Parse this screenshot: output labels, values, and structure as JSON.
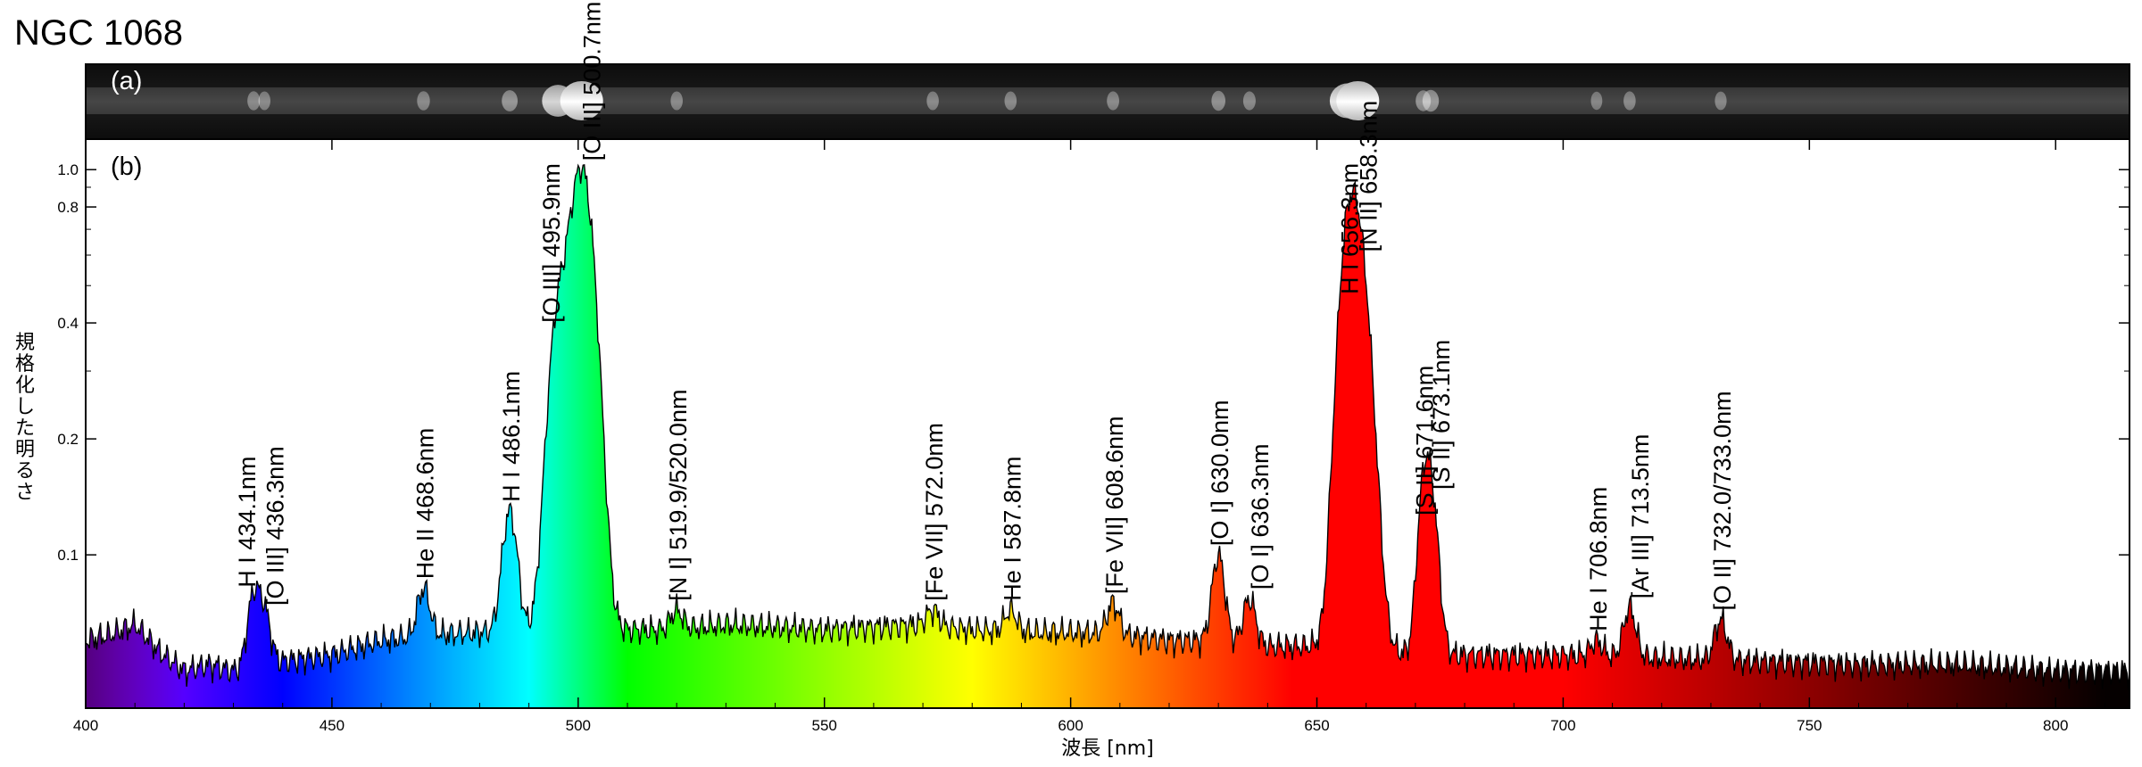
{
  "chart_data": {
    "type": "area",
    "title": "NGC 1068",
    "panel_a_label": "(a)",
    "panel_b_label": "(b)",
    "xlabel": "波長 [nm]",
    "ylabel": "規格化した明るさ",
    "xscale": "linear",
    "yscale": "log",
    "xlim": [
      400,
      815
    ],
    "ylim": [
      0.04,
      1.2
    ],
    "x_ticks": [
      400,
      450,
      500,
      550,
      600,
      650,
      700,
      750,
      800
    ],
    "x_tick_labels": [
      "400",
      "450",
      "500",
      "550",
      "600",
      "650",
      "700",
      "750",
      "800"
    ],
    "y_ticks": [
      0.1,
      0.2,
      0.4,
      0.8,
      1.0
    ],
    "y_tick_labels": [
      "0.1",
      "0.2",
      "0.4",
      "0.8",
      "1.0"
    ],
    "continuum_anchors": [
      [
        400,
        0.06
      ],
      [
        405,
        0.062
      ],
      [
        410,
        0.066
      ],
      [
        415,
        0.056
      ],
      [
        420,
        0.05
      ],
      [
        425,
        0.052
      ],
      [
        430,
        0.05
      ],
      [
        440,
        0.053
      ],
      [
        450,
        0.055
      ],
      [
        460,
        0.06
      ],
      [
        470,
        0.062
      ],
      [
        480,
        0.063
      ],
      [
        490,
        0.064
      ],
      [
        510,
        0.064
      ],
      [
        520,
        0.064
      ],
      [
        530,
        0.066
      ],
      [
        540,
        0.065
      ],
      [
        550,
        0.064
      ],
      [
        560,
        0.065
      ],
      [
        570,
        0.066
      ],
      [
        580,
        0.064
      ],
      [
        590,
        0.063
      ],
      [
        600,
        0.063
      ],
      [
        610,
        0.062
      ],
      [
        620,
        0.06
      ],
      [
        630,
        0.06
      ],
      [
        640,
        0.058
      ],
      [
        650,
        0.058
      ],
      [
        660,
        0.056
      ],
      [
        680,
        0.055
      ],
      [
        690,
        0.055
      ],
      [
        700,
        0.055
      ],
      [
        720,
        0.054
      ],
      [
        740,
        0.053
      ],
      [
        760,
        0.052
      ],
      [
        780,
        0.052
      ],
      [
        800,
        0.05
      ],
      [
        815,
        0.05
      ]
    ],
    "emission_lines": [
      {
        "label": "H I 434.1nm",
        "wavelength": 434.1,
        "peak": 0.078
      },
      {
        "label": "[O III] 436.3nm",
        "wavelength": 436.3,
        "peak": 0.07
      },
      {
        "label": "He II 468.6nm",
        "wavelength": 468.6,
        "peak": 0.082
      },
      {
        "label": "H I 486.1nm",
        "wavelength": 486.1,
        "peak": 0.13
      },
      {
        "label": "[O III] 495.9nm",
        "wavelength": 495.9,
        "peak": 0.38
      },
      {
        "label": "[O III] 500.7nm",
        "wavelength": 500.7,
        "peak": 1.0
      },
      {
        "label": "[N I] 519.9/520.0nm",
        "wavelength": 520.0,
        "peak": 0.072
      },
      {
        "label": "[Fe VII] 572.0nm",
        "wavelength": 572.0,
        "peak": 0.072
      },
      {
        "label": "He I 587.8nm",
        "wavelength": 587.8,
        "peak": 0.072
      },
      {
        "label": "[Fe VII] 608.6nm",
        "wavelength": 608.6,
        "peak": 0.075
      },
      {
        "label": "[O I] 630.0nm",
        "wavelength": 630.0,
        "peak": 0.1
      },
      {
        "label": "[O I] 636.3nm",
        "wavelength": 636.3,
        "peak": 0.077
      },
      {
        "label": "H I 656.3nm",
        "wavelength": 656.3,
        "peak": 0.45
      },
      {
        "label": "[N II] 658.3nm",
        "wavelength": 658.3,
        "peak": 0.58
      },
      {
        "label": "[S II] 671.6nm",
        "wavelength": 671.6,
        "peak": 0.12
      },
      {
        "label": "[S II] 673.1nm",
        "wavelength": 673.1,
        "peak": 0.14
      },
      {
        "label": "He I 706.8nm",
        "wavelength": 706.8,
        "peak": 0.06
      },
      {
        "label": "[Ar III] 713.5nm",
        "wavelength": 713.5,
        "peak": 0.073
      },
      {
        "label": "[O II] 732.0/733.0nm",
        "wavelength": 732.0,
        "peak": 0.068
      }
    ],
    "grid": false,
    "legend": "none"
  }
}
